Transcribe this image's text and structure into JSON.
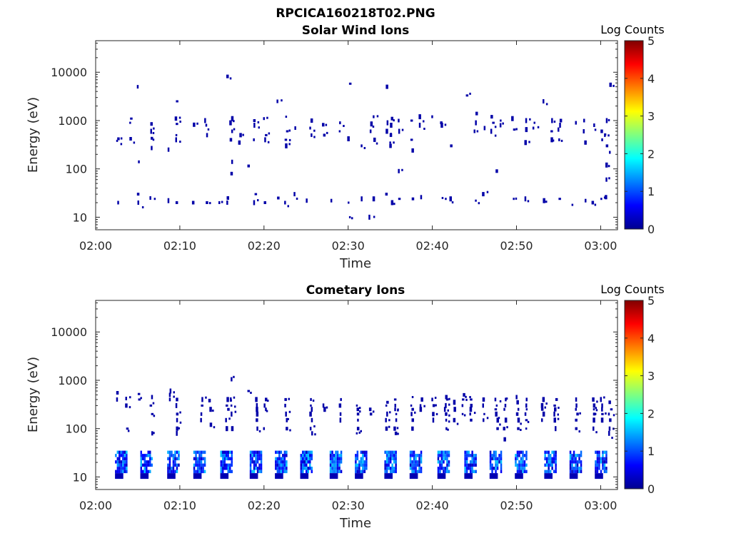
{
  "figure": {
    "title": "RPCICA160218T02.PNG"
  },
  "colorbar": {
    "title": "Log Counts",
    "ticks": [
      "0",
      "1",
      "2",
      "3",
      "4",
      "5"
    ],
    "range": [
      0,
      5
    ],
    "colormap": "jet"
  },
  "chart_data": [
    {
      "type": "heatmap",
      "title": "Solar Wind Ions",
      "xlabel": "Time",
      "ylabel": "Energy (eV)",
      "y_scale": "log",
      "xlim": [
        "02:00",
        "03:02"
      ],
      "ylim": [
        5.5,
        45000
      ],
      "x_ticks": [
        "02:00",
        "02:10",
        "02:20",
        "02:30",
        "02:40",
        "02:50",
        "03:00"
      ],
      "y_ticks": [
        "10",
        "100",
        "1000",
        "10000"
      ],
      "value_units": "Log Counts",
      "groups": [
        {
          "t": "02:02.5",
          "energies": [
            420,
            380,
            20
          ]
        },
        {
          "t": "02:04",
          "energies": [
            1100,
            900,
            420
          ]
        },
        {
          "t": "02:05",
          "energies": [
            5000,
            140,
            30,
            20
          ]
        },
        {
          "t": "02:06.5",
          "energies": [
            850,
            600,
            430,
            270,
            25
          ]
        },
        {
          "t": "02:08.5",
          "energies": [
            250,
            22
          ]
        },
        {
          "t": "02:09.5",
          "energies": [
            2500,
            1100,
            850,
            500,
            400,
            20
          ]
        },
        {
          "t": "02:11.5",
          "energies": [
            820,
            20
          ]
        },
        {
          "t": "02:13",
          "energies": [
            1000,
            800,
            500,
            20
          ]
        },
        {
          "t": "02:14.5",
          "energies": [
            20
          ]
        },
        {
          "t": "02:15.5",
          "energies": [
            8200,
            25,
            20
          ]
        },
        {
          "t": "02:16",
          "energies": [
            1100,
            900,
            600,
            400,
            140,
            80
          ]
        },
        {
          "t": "02:17",
          "energies": [
            500,
            350
          ]
        },
        {
          "t": "02:18",
          "energies": [
            115
          ]
        },
        {
          "t": "02:18.8",
          "energies": [
            1000,
            800,
            400,
            30,
            20
          ]
        },
        {
          "t": "02:20",
          "energies": [
            1100,
            500,
            400,
            20
          ]
        },
        {
          "t": "02:21.5",
          "energies": [
            2500,
            25
          ]
        },
        {
          "t": "02:22.5",
          "energies": [
            1200,
            600,
            400,
            300,
            20
          ]
        },
        {
          "t": "02:23.5",
          "energies": [
            700,
            30
          ]
        },
        {
          "t": "02:25",
          "energies": [
            22
          ]
        },
        {
          "t": "02:25.5",
          "energies": [
            1000,
            700,
            500
          ]
        },
        {
          "t": "02:27",
          "energies": [
            820,
            500
          ]
        },
        {
          "t": "02:28",
          "energies": [
            22
          ]
        },
        {
          "t": "02:29",
          "energies": [
            900,
            600
          ]
        },
        {
          "t": "02:30",
          "energies": [
            5800,
            420,
            20,
            10
          ]
        },
        {
          "t": "02:31.5",
          "energies": [
            300,
            24
          ]
        },
        {
          "t": "02:32.5",
          "energies": [
            850,
            600,
            10
          ]
        },
        {
          "t": "02:33",
          "energies": [
            1200,
            400,
            24
          ]
        },
        {
          "t": "02:34.5",
          "energies": [
            5000,
            900,
            600,
            30
          ]
        },
        {
          "t": "02:35",
          "energies": [
            1100,
            800,
            500,
            350,
            300,
            20
          ]
        },
        {
          "t": "02:36",
          "energies": [
            1000,
            600,
            90,
            24
          ]
        },
        {
          "t": "02:37.5",
          "energies": [
            1000,
            400,
            240,
            24
          ]
        },
        {
          "t": "02:38.5",
          "energies": [
            1200,
            800,
            26
          ]
        },
        {
          "t": "02:40",
          "energies": [
            1200
          ]
        },
        {
          "t": "02:41",
          "energies": [
            900,
            800,
            25
          ]
        },
        {
          "t": "02:42",
          "energies": [
            300,
            24
          ]
        },
        {
          "t": "02:44",
          "energies": [
            3300
          ]
        },
        {
          "t": "02:45",
          "energies": [
            1400,
            900,
            600,
            22
          ]
        },
        {
          "t": "02:46",
          "energies": [
            700,
            30
          ]
        },
        {
          "t": "02:47",
          "energies": [
            1200,
            900,
            600
          ]
        },
        {
          "t": "02:47.5",
          "energies": [
            90
          ]
        },
        {
          "t": "02:48",
          "energies": [
            1000,
            800
          ]
        },
        {
          "t": "02:49.5",
          "energies": [
            1100,
            650,
            24
          ]
        },
        {
          "t": "02:51",
          "energies": [
            1000,
            650,
            350,
            24
          ]
        },
        {
          "t": "02:52",
          "energies": [
            900,
            700
          ]
        },
        {
          "t": "02:53",
          "energies": [
            2500,
            22
          ]
        },
        {
          "t": "02:54",
          "energies": [
            1000,
            600,
            400
          ]
        },
        {
          "t": "02:55",
          "energies": [
            1000,
            800,
            650,
            400,
            24
          ]
        },
        {
          "t": "02:56.5",
          "energies": [
            18
          ]
        },
        {
          "t": "02:57",
          "energies": [
            900
          ]
        },
        {
          "t": "02:58",
          "energies": [
            1000,
            600,
            350,
            22
          ]
        },
        {
          "t": "02:59",
          "energies": [
            800,
            20
          ]
        },
        {
          "t": "03:00",
          "energies": [
            600,
            400,
            24
          ]
        },
        {
          "t": "03:00.5",
          "energies": [
            1000,
            500,
            300,
            120,
            60,
            26
          ]
        },
        {
          "t": "03:01",
          "energies": [
            5500,
            220
          ]
        }
      ]
    },
    {
      "type": "heatmap",
      "title": "Cometary Ions",
      "xlabel": "Time",
      "ylabel": "Energy (eV)",
      "y_scale": "log",
      "xlim": [
        "02:00",
        "03:02"
      ],
      "ylim": [
        5.5,
        45000
      ],
      "x_ticks": [
        "02:00",
        "02:10",
        "02:20",
        "02:30",
        "02:40",
        "02:50",
        "03:00"
      ],
      "y_ticks": [
        "10",
        "100",
        "1000",
        "10000"
      ],
      "value_units": "Log Counts",
      "low_energy_blocks": {
        "centers": [
          "02:03",
          "02:06",
          "02:09.2",
          "02:12.3",
          "02:15.5",
          "02:19",
          "02:22",
          "02:25",
          "02:28.5",
          "02:31.5",
          "02:35",
          "02:38",
          "02:41.3",
          "02:44.5",
          "02:47.5",
          "02:50.5",
          "02:54",
          "02:57",
          "03:00"
        ],
        "width_minutes": 1.4,
        "energy_range": [
          12,
          35
        ],
        "level_range": [
          0.3,
          1.6
        ]
      },
      "groups": [
        {
          "t": "02:02.5",
          "energies": [
            550,
            400
          ]
        },
        {
          "t": "02:03.5",
          "energies": [
            420,
            300,
            100
          ]
        },
        {
          "t": "02:05",
          "energies": [
            520,
            400
          ]
        },
        {
          "t": "02:06.5",
          "energies": [
            450,
            300,
            200,
            80
          ]
        },
        {
          "t": "02:08.8",
          "energies": [
            600,
            500,
            400
          ]
        },
        {
          "t": "02:09.5",
          "energies": [
            400,
            300,
            200,
            150,
            100,
            80
          ]
        },
        {
          "t": "02:12.5",
          "energies": [
            400,
            300,
            200,
            150
          ]
        },
        {
          "t": "02:13.5",
          "energies": [
            380,
            250,
            120
          ]
        },
        {
          "t": "02:15.5",
          "energies": [
            400,
            300,
            250,
            150,
            100
          ]
        },
        {
          "t": "02:16",
          "energies": [
            1050,
            400,
            300,
            200,
            100
          ]
        },
        {
          "t": "02:18",
          "energies": [
            600
          ]
        },
        {
          "t": "02:19",
          "energies": [
            400,
            300,
            250,
            200,
            150,
            100
          ]
        },
        {
          "t": "02:20",
          "energies": [
            400,
            300,
            250,
            100
          ]
        },
        {
          "t": "02:22.5",
          "energies": [
            400,
            300,
            200,
            150,
            100
          ]
        },
        {
          "t": "02:25.5",
          "energies": [
            400,
            300,
            250,
            200,
            150,
            100,
            80
          ]
        },
        {
          "t": "02:27",
          "energies": [
            300,
            250
          ]
        },
        {
          "t": "02:29",
          "energies": [
            400,
            300,
            200,
            150
          ]
        },
        {
          "t": "02:31",
          "energies": [
            300,
            250,
            200,
            150,
            100,
            80
          ]
        },
        {
          "t": "02:32.5",
          "energies": [
            250,
            200
          ]
        },
        {
          "t": "02:34.5",
          "energies": [
            350,
            300,
            200,
            150,
            100
          ]
        },
        {
          "t": "02:35.5",
          "energies": [
            400,
            300,
            250,
            200,
            150,
            100,
            80
          ]
        },
        {
          "t": "02:37.5",
          "energies": [
            450,
            300,
            250,
            200,
            150,
            100
          ]
        },
        {
          "t": "02:38.5",
          "energies": [
            400,
            300,
            250
          ]
        },
        {
          "t": "02:40",
          "energies": [
            400,
            300,
            200,
            150
          ]
        },
        {
          "t": "02:41.5",
          "energies": [
            450,
            400,
            300,
            250,
            200,
            150,
            100
          ]
        },
        {
          "t": "02:42.5",
          "energies": [
            350,
            250,
            150
          ]
        },
        {
          "t": "02:43.5",
          "energies": [
            500,
            400,
            300,
            200
          ]
        },
        {
          "t": "02:44.5",
          "energies": [
            450,
            400,
            300,
            250,
            200,
            150
          ]
        },
        {
          "t": "02:46",
          "energies": [
            400,
            300,
            200,
            150
          ]
        },
        {
          "t": "02:47.5",
          "energies": [
            400,
            300,
            250,
            200,
            150,
            100
          ]
        },
        {
          "t": "02:48.5",
          "energies": [
            400,
            300,
            250,
            150,
            100,
            60
          ]
        },
        {
          "t": "02:50",
          "energies": [
            450,
            350,
            250,
            200,
            150,
            100
          ]
        },
        {
          "t": "02:51",
          "energies": [
            400,
            300,
            250,
            200,
            150,
            100
          ]
        },
        {
          "t": "02:53",
          "energies": [
            400,
            300,
            250,
            200,
            150
          ]
        },
        {
          "t": "02:54.5",
          "energies": [
            400,
            300,
            250,
            200,
            150,
            100
          ]
        },
        {
          "t": "02:57",
          "energies": [
            400,
            300,
            250,
            200,
            150,
            100
          ]
        },
        {
          "t": "02:59",
          "energies": [
            400,
            300,
            250,
            200,
            150,
            100
          ]
        },
        {
          "t": "03:00",
          "energies": [
            400,
            300,
            250,
            200,
            150
          ]
        },
        {
          "t": "03:01",
          "energies": [
            350,
            250,
            200,
            150,
            100,
            80
          ]
        }
      ]
    }
  ]
}
